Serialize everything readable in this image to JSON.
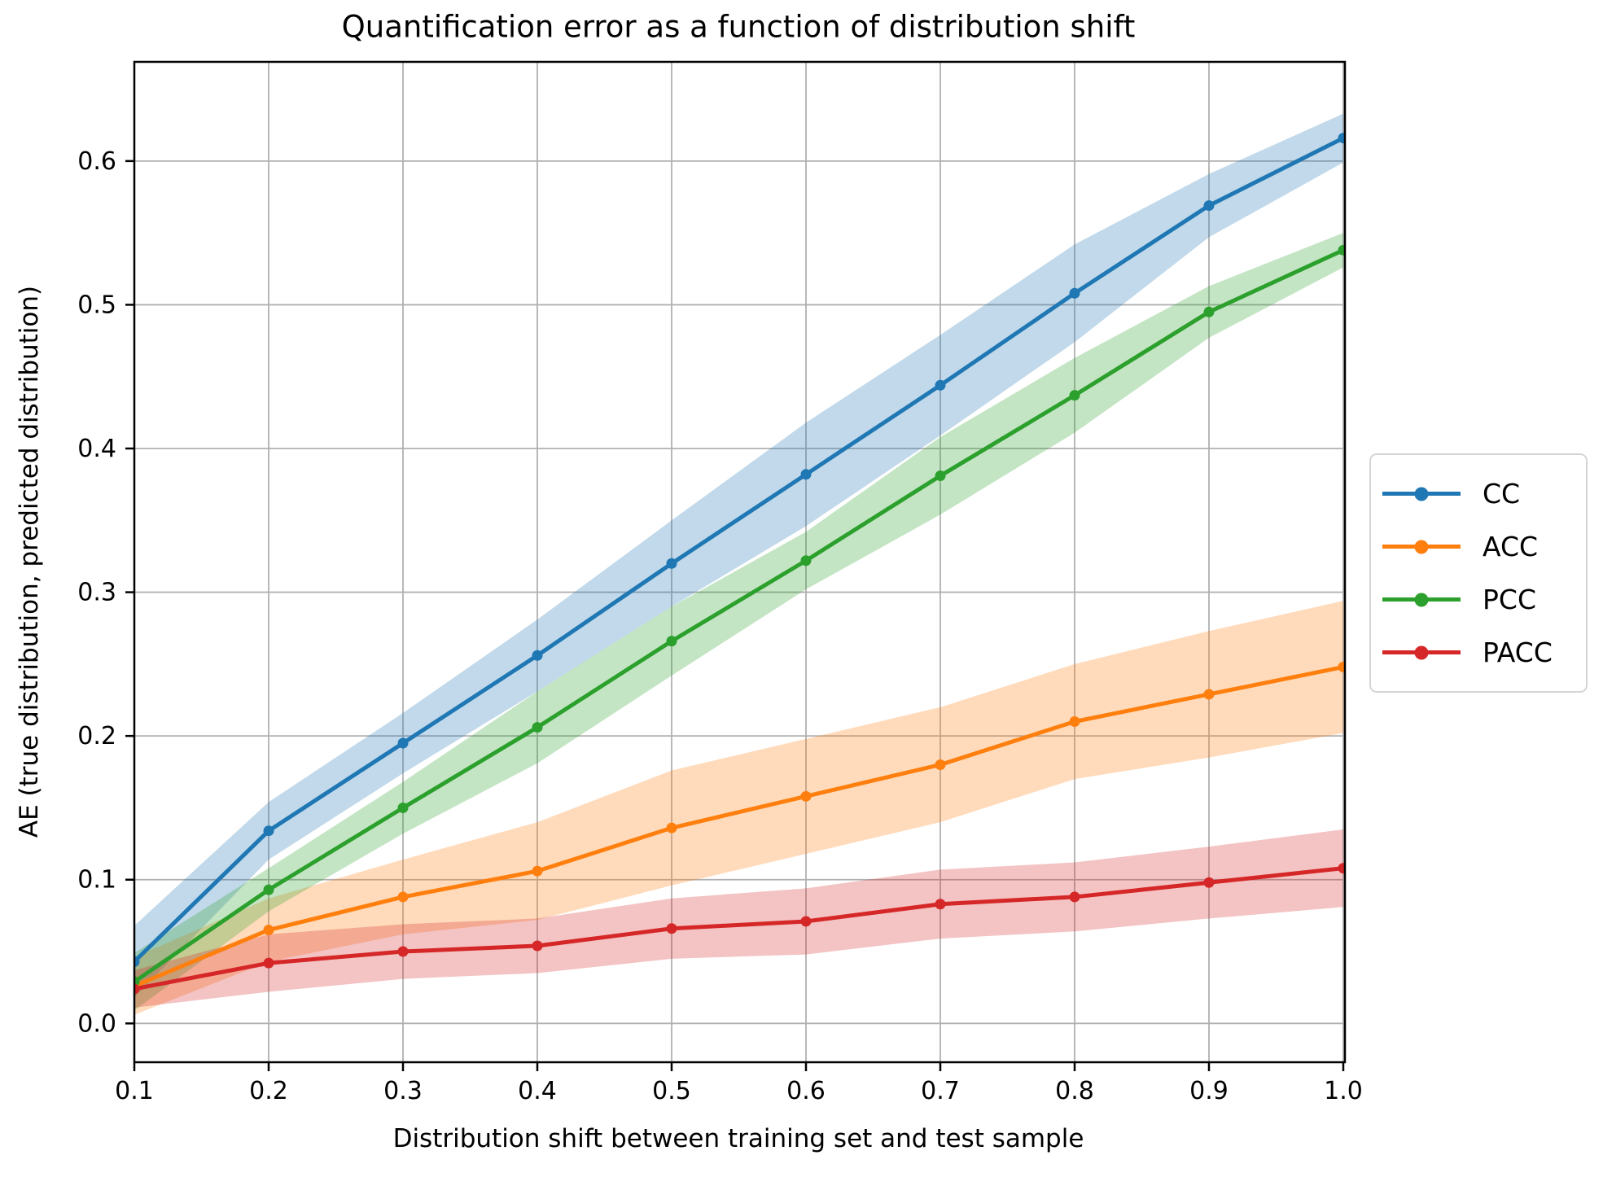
{
  "chart_data": {
    "type": "line",
    "title": "Quantification error as a function of distribution shift",
    "xlabel": "Distribution shift between training set and test sample",
    "ylabel": "AE (true distribution, predicted distribution)",
    "x": [
      0.1,
      0.2,
      0.3,
      0.4,
      0.5,
      0.6,
      0.7,
      0.8,
      0.9,
      1.0
    ],
    "x_tick_labels": [
      "0.1",
      "0.2",
      "0.3",
      "0.4",
      "0.5",
      "0.6",
      "0.7",
      "0.8",
      "0.9",
      "1.0"
    ],
    "y_ticks": [
      0.0,
      0.1,
      0.2,
      0.3,
      0.4,
      0.5,
      0.6
    ],
    "y_tick_labels": [
      "0.0",
      "0.1",
      "0.2",
      "0.3",
      "0.4",
      "0.5",
      "0.6"
    ],
    "xlim": [
      0.1,
      1.0
    ],
    "ylim": [
      -0.027,
      0.669
    ],
    "grid": true,
    "grid_color": "#b0b0b0",
    "band_alpha": 0.28,
    "legend_position": "center right, outside axes",
    "series": [
      {
        "name": "CC",
        "color": "#1f77b4",
        "values": [
          0.043,
          0.134,
          0.195,
          0.256,
          0.32,
          0.382,
          0.444,
          0.508,
          0.569,
          0.616
        ],
        "band_lower": [
          0.018,
          0.114,
          0.174,
          0.231,
          0.29,
          0.346,
          0.409,
          0.474,
          0.547,
          0.599
        ],
        "band_upper": [
          0.068,
          0.154,
          0.216,
          0.281,
          0.35,
          0.418,
          0.479,
          0.542,
          0.591,
          0.633
        ]
      },
      {
        "name": "ACC",
        "color": "#ff7f0e",
        "values": [
          0.026,
          0.065,
          0.088,
          0.106,
          0.136,
          0.158,
          0.18,
          0.21,
          0.229,
          0.248
        ],
        "band_lower": [
          0.006,
          0.043,
          0.062,
          0.072,
          0.096,
          0.118,
          0.14,
          0.17,
          0.185,
          0.202
        ],
        "band_upper": [
          0.046,
          0.087,
          0.114,
          0.14,
          0.176,
          0.198,
          0.22,
          0.25,
          0.273,
          0.294
        ]
      },
      {
        "name": "PCC",
        "color": "#2ca02c",
        "values": [
          0.029,
          0.093,
          0.15,
          0.206,
          0.266,
          0.322,
          0.381,
          0.437,
          0.495,
          0.538
        ],
        "band_lower": [
          0.009,
          0.078,
          0.132,
          0.181,
          0.242,
          0.302,
          0.354,
          0.411,
          0.477,
          0.526
        ],
        "band_upper": [
          0.049,
          0.108,
          0.168,
          0.231,
          0.29,
          0.342,
          0.408,
          0.463,
          0.513,
          0.55
        ]
      },
      {
        "name": "PACC",
        "color": "#d62728",
        "values": [
          0.024,
          0.042,
          0.05,
          0.054,
          0.066,
          0.071,
          0.083,
          0.088,
          0.098,
          0.108
        ],
        "band_lower": [
          0.011,
          0.022,
          0.031,
          0.035,
          0.045,
          0.048,
          0.059,
          0.064,
          0.073,
          0.081
        ],
        "band_upper": [
          0.037,
          0.062,
          0.069,
          0.073,
          0.087,
          0.094,
          0.107,
          0.112,
          0.123,
          0.135
        ]
      }
    ]
  }
}
